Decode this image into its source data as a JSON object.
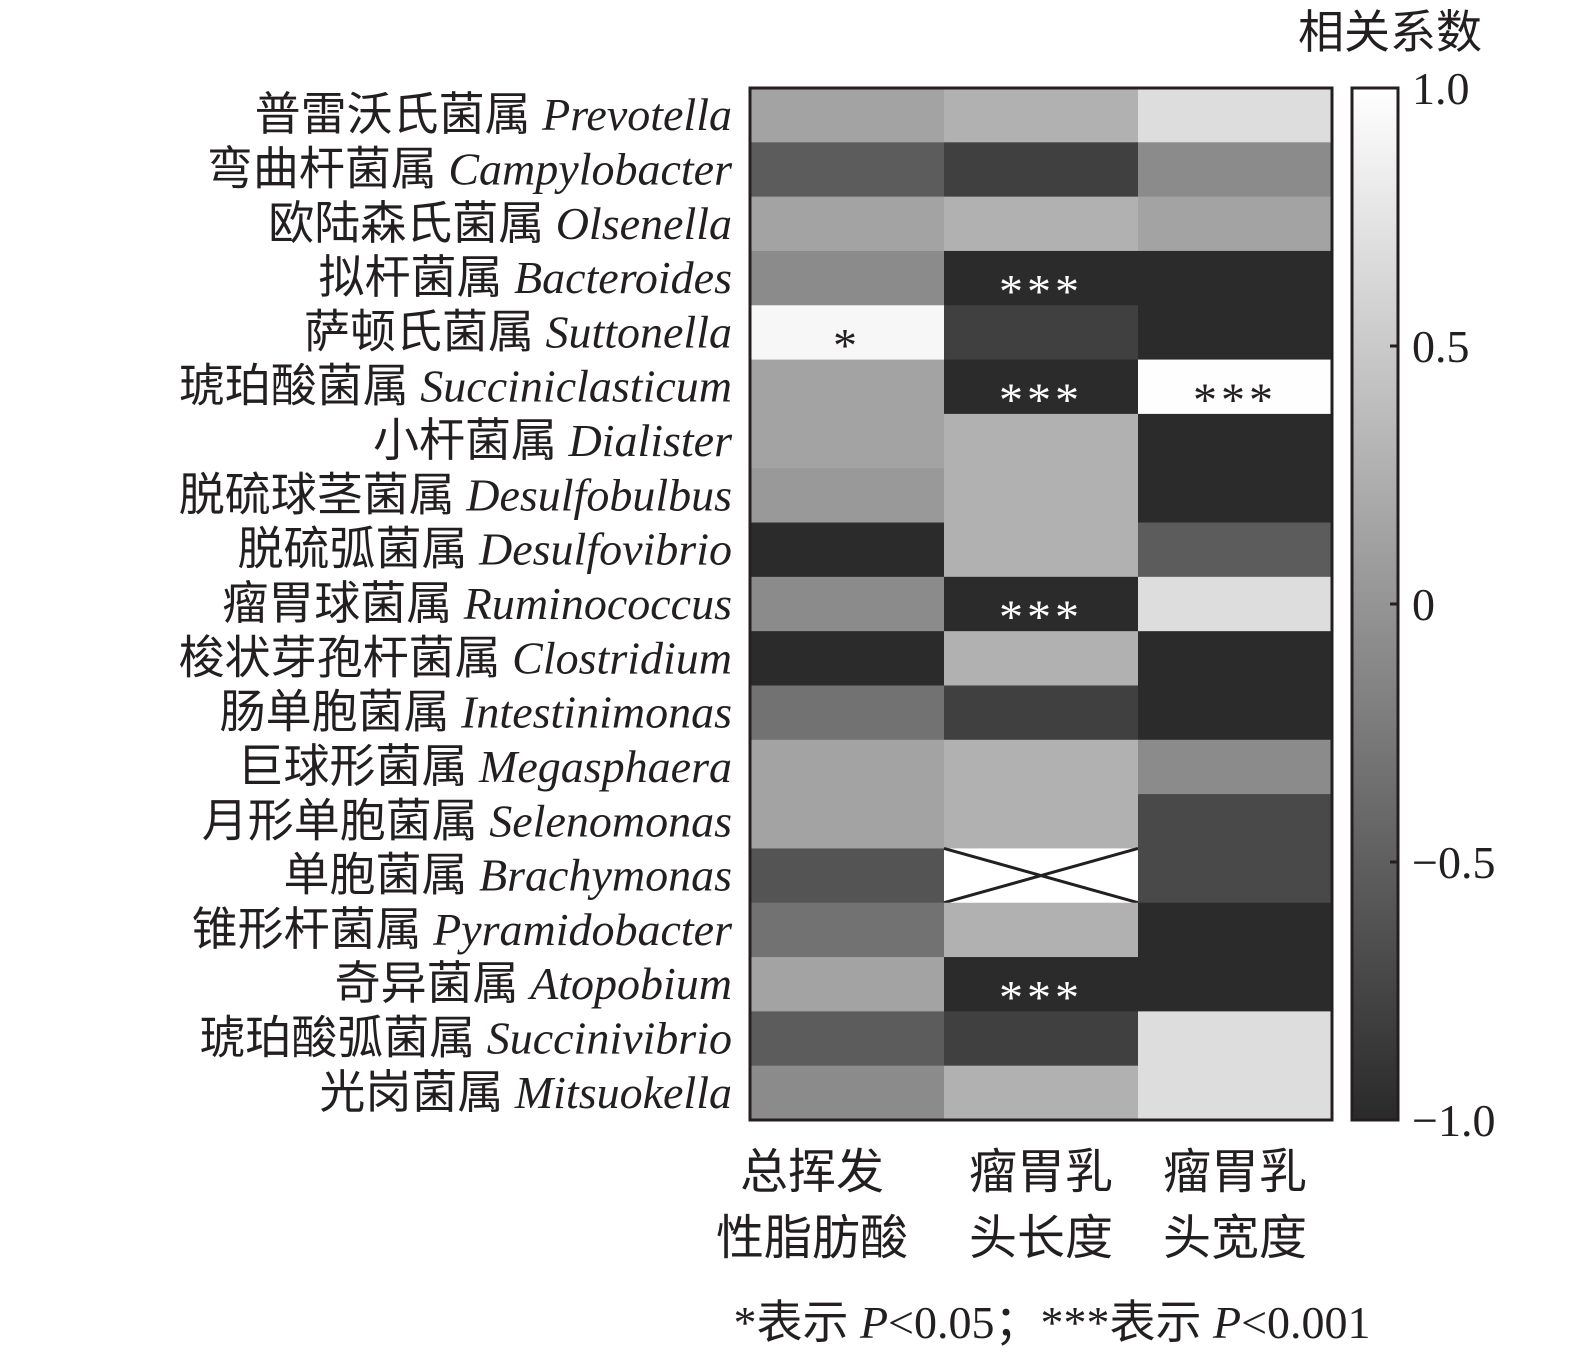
{
  "chart_data": {
    "type": "heatmap",
    "legend_title": "相关系数",
    "colorbar": {
      "range": [
        -1.0,
        1.0
      ],
      "ticks": [
        "1.0",
        "0.5",
        "0",
        "−0.5",
        "−1.0"
      ],
      "tick_values": [
        1.0,
        0.5,
        0,
        -0.5,
        -1.0
      ],
      "low_color": "#2a2a2a",
      "high_color": "#ffffff",
      "placement": "right"
    },
    "columns": [
      {
        "line1": "总挥发",
        "line2": "性脂肪酸"
      },
      {
        "line1": "瘤胃乳",
        "line2": "头长度"
      },
      {
        "line1": "瘤胃乳",
        "line2": "头宽度"
      }
    ],
    "rows": [
      {
        "cn": "普雷沃氏菌属",
        "latin": "Prevotella",
        "values": [
          0.15,
          0.28,
          0.69
        ],
        "sig": [
          "",
          "",
          ""
        ]
      },
      {
        "cn": "弯曲杆菌属",
        "latin": "Campylobacter",
        "values": [
          -0.52,
          -0.78,
          -0.08
        ],
        "sig": [
          "",
          "",
          ""
        ]
      },
      {
        "cn": "欧陆森氏菌属",
        "latin": "Olsenella",
        "values": [
          0.15,
          0.28,
          0.15
        ],
        "sig": [
          "",
          "",
          ""
        ]
      },
      {
        "cn": "拟杆菌属",
        "latin": "Bacteroides",
        "values": [
          -0.08,
          -0.98,
          -0.98
        ],
        "sig": [
          "",
          "***",
          ""
        ]
      },
      {
        "cn": "萨顿氏菌属",
        "latin": "Suttonella",
        "values": [
          0.93,
          -0.78,
          -0.98
        ],
        "sig": [
          "*",
          "",
          ""
        ]
      },
      {
        "cn": "琥珀酸菌属",
        "latin": "Succiniclasticum",
        "values": [
          0.15,
          -0.98,
          1.0
        ],
        "sig": [
          "",
          "***",
          "***"
        ]
      },
      {
        "cn": "小杆菌属",
        "latin": "Dialister",
        "values": [
          0.15,
          0.28,
          -0.98
        ],
        "sig": [
          "",
          "",
          ""
        ]
      },
      {
        "cn": "脱硫球茎菌属",
        "latin": "Desulfobulbus",
        "values": [
          0.05,
          0.28,
          -0.98
        ],
        "sig": [
          "",
          "",
          ""
        ]
      },
      {
        "cn": "脱硫弧菌属",
        "latin": "Desulfovibrio",
        "values": [
          -0.98,
          0.28,
          -0.52
        ],
        "sig": [
          "",
          "",
          ""
        ]
      },
      {
        "cn": "瘤胃球菌属",
        "latin": "Ruminococcus",
        "values": [
          -0.08,
          -0.98,
          0.69
        ],
        "sig": [
          "",
          "***",
          ""
        ]
      },
      {
        "cn": "梭状芽孢杆菌属",
        "latin": "Clostridium",
        "values": [
          -0.98,
          0.28,
          -0.98
        ],
        "sig": [
          "",
          "",
          ""
        ]
      },
      {
        "cn": "肠单胞菌属",
        "latin": "Intestinimonas",
        "values": [
          -0.31,
          -0.78,
          -0.98
        ],
        "sig": [
          "",
          "",
          ""
        ]
      },
      {
        "cn": "巨球形菌属",
        "latin": "Megasphaera",
        "values": [
          0.15,
          0.28,
          -0.08
        ],
        "sig": [
          "",
          "",
          ""
        ]
      },
      {
        "cn": "月形单胞菌属",
        "latin": "Selenomonas",
        "values": [
          0.15,
          0.28,
          -0.7
        ],
        "sig": [
          "",
          "",
          ""
        ]
      },
      {
        "cn": "单胞菌属",
        "latin": "Brachymonas",
        "values": [
          -0.6,
          null,
          -0.7
        ],
        "sig": [
          "",
          "",
          ""
        ]
      },
      {
        "cn": "锥形杆菌属",
        "latin": "Pyramidobacter",
        "values": [
          -0.31,
          0.28,
          -0.98
        ],
        "sig": [
          "",
          "",
          ""
        ]
      },
      {
        "cn": "奇异菌属",
        "latin": "Atopobium",
        "values": [
          0.15,
          -0.98,
          -0.98
        ],
        "sig": [
          "",
          "***",
          ""
        ]
      },
      {
        "cn": "琥珀酸弧菌属",
        "latin": "Succinivibrio",
        "values": [
          -0.52,
          -0.78,
          0.69
        ],
        "sig": [
          "",
          "",
          ""
        ]
      },
      {
        "cn": "光岗菌属",
        "latin": "Mitsuokella",
        "values": [
          -0.08,
          0.28,
          0.69
        ],
        "sig": [
          "",
          "",
          ""
        ]
      }
    ],
    "missing_marker": "cross",
    "footnote": {
      "p1_sym": "*表示 ",
      "p1_p": "P",
      "p1_val": "<0.05；",
      "p2_sym": "***表示 ",
      "p2_p": "P",
      "p2_val": "<0.001"
    }
  }
}
